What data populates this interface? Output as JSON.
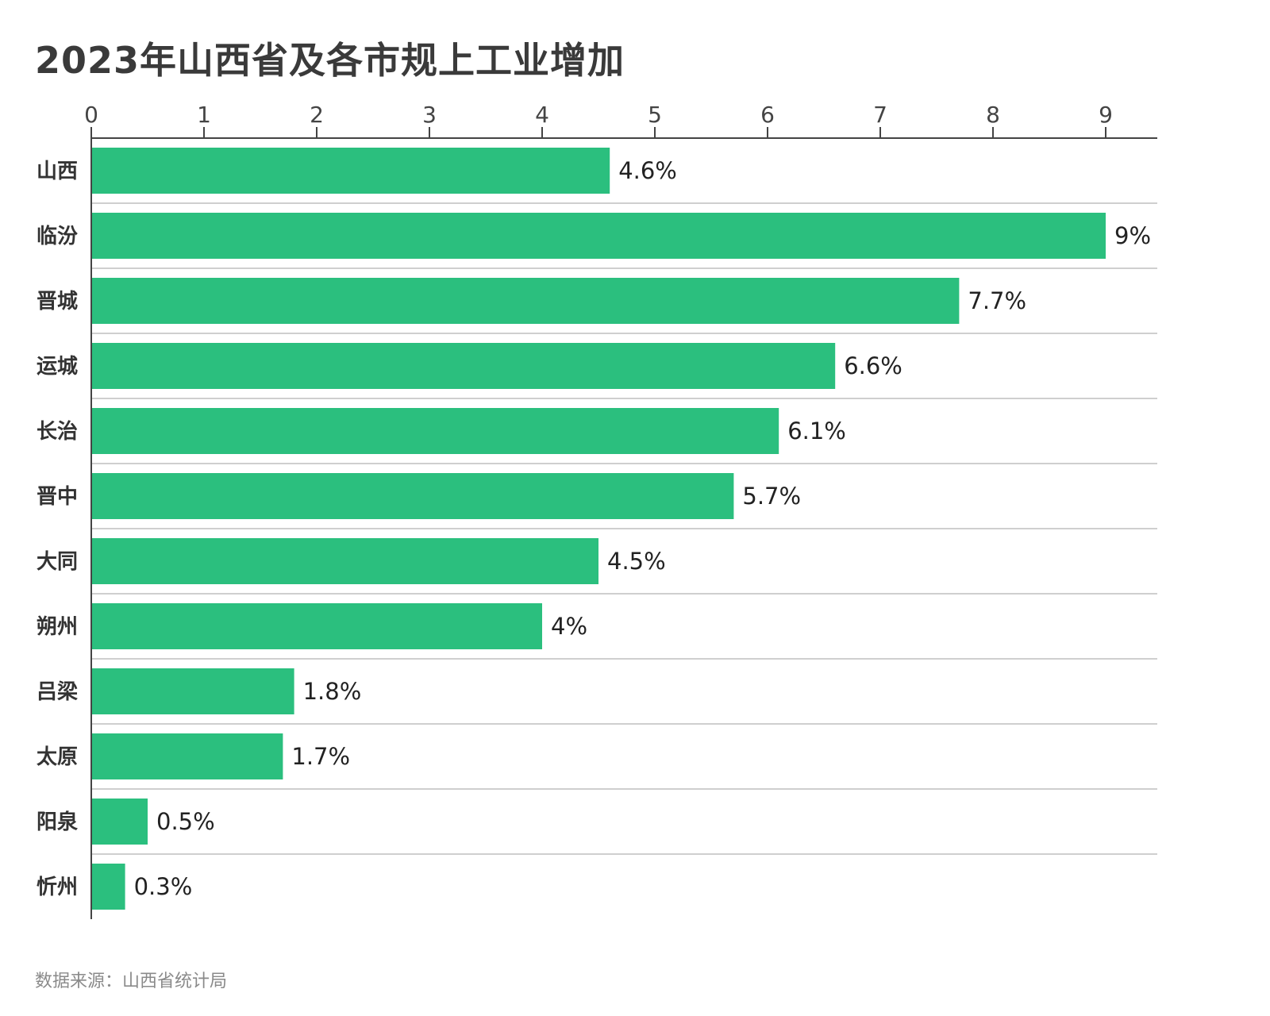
{
  "chart_data": {
    "type": "bar",
    "orientation": "horizontal",
    "title": "2023年山西省及各市规上工业增加",
    "categories": [
      "山西",
      "临汾",
      "晋城",
      "运城",
      "长治",
      "晋中",
      "大同",
      "朔州",
      "吕梁",
      "太原",
      "阳泉",
      "忻州"
    ],
    "values": [
      4.6,
      9,
      7.7,
      6.6,
      6.1,
      5.7,
      4.5,
      4,
      1.8,
      1.7,
      0.5,
      0.3
    ],
    "value_labels": [
      "4.6%",
      "9%",
      "7.7%",
      "6.6%",
      "6.1%",
      "5.7%",
      "4.5%",
      "4%",
      "1.8%",
      "1.7%",
      "0.5%",
      "0.3%"
    ],
    "xticks": [
      "0",
      "1",
      "2",
      "3",
      "4",
      "5",
      "6",
      "7",
      "8",
      "9"
    ],
    "xlim": [
      0,
      9.45
    ],
    "axis_position": "top",
    "grid": "horizontal separators",
    "bar_color": "#2bbf7e"
  },
  "footer": {
    "source": "数据来源：山西省统计局"
  }
}
